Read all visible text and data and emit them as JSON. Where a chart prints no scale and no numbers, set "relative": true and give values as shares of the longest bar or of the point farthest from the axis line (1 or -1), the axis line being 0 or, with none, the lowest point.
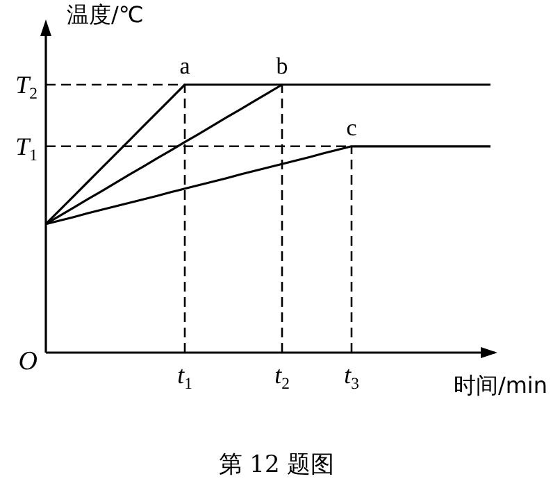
{
  "chart_data": {
    "type": "line",
    "relative": true,
    "xlabel": "时间/min",
    "ylabel": "温度/℃",
    "categories": [
      null,
      null,
      null,
      null,
      null,
      null,
      null,
      null,
      null,
      null,
      "t$_{1}$",
      null,
      null,
      null,
      null,
      null,
      null,
      "t$_{2}$",
      null,
      null,
      null,
      null,
      "t$_{3}$",
      null,
      null,
      null,
      null,
      null,
      null,
      null,
      null,
      null,
      null
    ],
    "series": [
      {
        "name": "a",
        "color": "#000000",
        "values": [
          0.48,
          0.532,
          0.584,
          0.636,
          0.688,
          0.74,
          0.792,
          0.844,
          0.896,
          0.948,
          1,
          1,
          1,
          1,
          1,
          1,
          1,
          1,
          1,
          1,
          1,
          1,
          1,
          1,
          1,
          1,
          1,
          1,
          1,
          1,
          1,
          1,
          1
        ]
      },
      {
        "name": "b",
        "color": "#000000",
        "values": [
          0.48,
          0.511,
          0.541,
          0.572,
          0.602,
          0.633,
          0.664,
          0.694,
          0.725,
          0.755,
          0.786,
          0.816,
          0.847,
          0.878,
          0.908,
          0.939,
          0.969,
          1,
          null,
          null,
          null,
          null,
          null,
          null,
          null,
          null,
          null,
          null,
          null,
          null,
          null,
          null,
          null
        ]
      },
      {
        "name": "c",
        "color": "#000000",
        "values": [
          0.48,
          0.493,
          0.506,
          0.52,
          0.533,
          0.546,
          0.559,
          0.572,
          0.585,
          0.599,
          0.612,
          0.625,
          0.638,
          0.651,
          0.665,
          0.678,
          0.691,
          0.704,
          0.717,
          0.73,
          0.744,
          0.757,
          0.77,
          0.77,
          0.77,
          0.77,
          0.77,
          0.77,
          0.77,
          0.77,
          0.77,
          0.77,
          0.77
        ]
      }
    ],
    "ref_lines": [
      {
        "axis": "y",
        "value": 1,
        "label": "T$_{2}$",
        "line_style": "dashed"
      },
      {
        "axis": "y",
        "value": 0.77,
        "label": "T$_{1}$",
        "line_style": "dashed"
      },
      {
        "axis": "x",
        "value": "t$_{1}$",
        "line_style": "dashed"
      },
      {
        "axis": "x",
        "value": "t$_{2}$",
        "line_style": "dashed"
      },
      {
        "axis": "x",
        "value": "t$_{3}$",
        "line_style": "dashed"
      }
    ],
    "annotations": [
      "O",
      "第 12 题图"
    ],
    "line_style": "solid"
  }
}
